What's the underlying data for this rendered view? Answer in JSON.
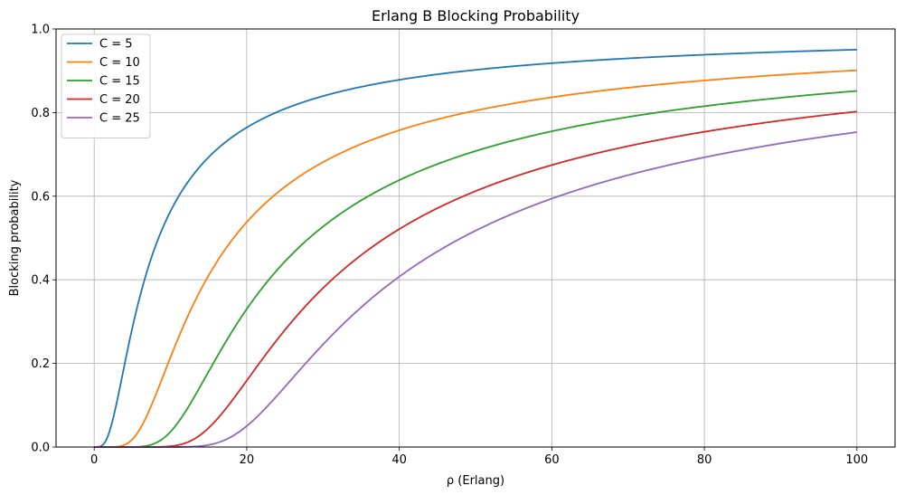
{
  "chart_data": {
    "type": "line",
    "title": "Erlang B Blocking Probability",
    "xlabel": "ρ (Erlang)",
    "ylabel": "Blocking probability",
    "xlim": [
      -5,
      105
    ],
    "ylim": [
      0,
      1
    ],
    "grid": true,
    "legend_position": "top-left",
    "x_ticks": [
      0,
      20,
      40,
      60,
      80,
      100
    ],
    "x_tick_labels": [
      "0",
      "20",
      "40",
      "60",
      "80",
      "100"
    ],
    "y_ticks": [
      0,
      0.2,
      0.4,
      0.6,
      0.8,
      1.0
    ],
    "y_tick_labels": [
      "0.0",
      "0.2",
      "0.4",
      "0.6",
      "0.8",
      "1.0"
    ],
    "x_range": [
      0,
      100
    ],
    "sample_points": 400,
    "series": [
      {
        "name": "C = 5",
        "channels": 5,
        "color": "#1f77b4"
      },
      {
        "name": "C = 10",
        "channels": 10,
        "color": "#ff7f0e"
      },
      {
        "name": "C = 15",
        "channels": 15,
        "color": "#2ca02c"
      },
      {
        "name": "C = 20",
        "channels": 20,
        "color": "#d62728"
      },
      {
        "name": "C = 25",
        "channels": 25,
        "color": "#9467bd"
      }
    ]
  }
}
